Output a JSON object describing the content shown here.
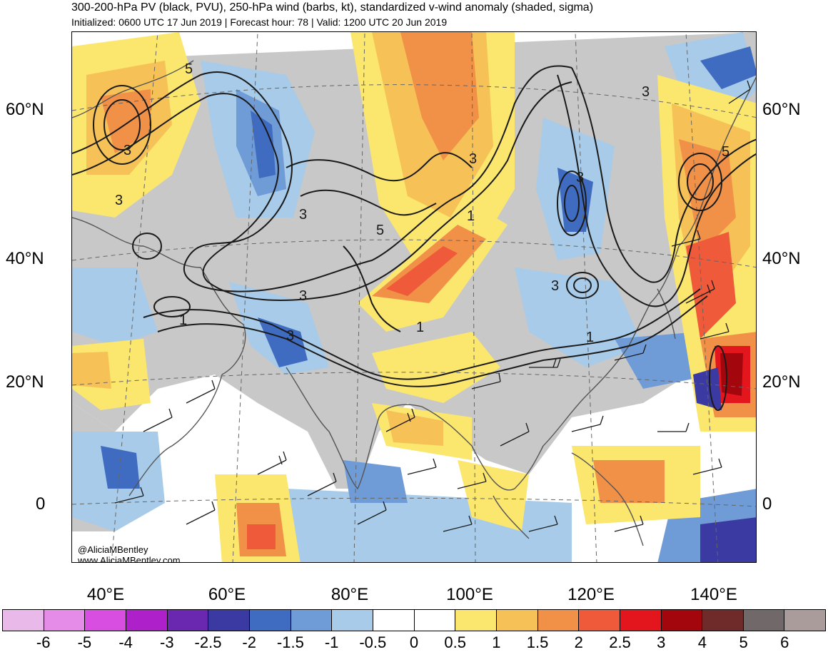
{
  "title": "300-200-hPa PV (black, PVU), 250-hPa wind (barbs, kt), standardized v-wind anomaly (shaded, sigma)",
  "subtitle": "Initialized: 0600 UTC 17 Jun 2019 | Forecast hour: 78 | Valid: 1200 UTC 20 Jun 2019",
  "credit": {
    "handle": "@AliciaMBentley",
    "site": "www.AliciaMBentley.com"
  },
  "latitude_labels": [
    "60°N",
    "40°N",
    "20°N",
    "0"
  ],
  "longitude_labels": [
    "40°E",
    "60°E",
    "80°E",
    "100°E",
    "120°E",
    "140°E"
  ],
  "contour_labels": [
    "3",
    "1",
    "5",
    "3",
    "5",
    "3",
    "3",
    "1",
    "3",
    "3",
    "1",
    "3",
    "5",
    "3",
    "3",
    "1"
  ],
  "colorbar": {
    "tick_labels": [
      "-6",
      "-5",
      "-4",
      "-3",
      "-2.5",
      "-2",
      "-1.5",
      "-1",
      "-0.5",
      "0",
      "0.5",
      "1",
      "1.5",
      "2",
      "2.5",
      "3",
      "4",
      "5",
      "6"
    ],
    "colors": [
      "#e9b9e9",
      "#e58be8",
      "#d74ee0",
      "#ae20c9",
      "#6a27b0",
      "#3b3aa3",
      "#3f6cc0",
      "#6f9bd6",
      "#a7cbe8",
      "#ffffff",
      "#ffffff",
      "#fbe66e",
      "#f6c257",
      "#f19147",
      "#ee5a3a",
      "#e3161d",
      "#a3070d",
      "#6f2a2a",
      "#716869",
      "#a99c9a"
    ]
  },
  "map_colors": {
    "land_gray": "#c8c8c8",
    "coast": "#555555",
    "pv_contour": "#1a1a1a",
    "graticule": "#666666"
  }
}
